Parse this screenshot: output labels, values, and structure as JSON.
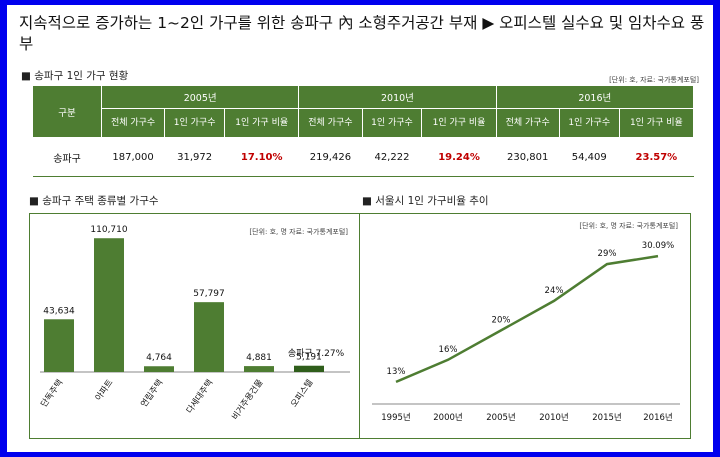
{
  "headline": "지속적으로 증가하는 1~2인 가구를 위한 송파구 內 소형주거공간 부재 ▶ 오피스텔 실수요 및 임차수요 풍부",
  "table_section": {
    "title": "■ 송파구 1인 가구 현황",
    "source": "[단위: 호, 자료: 국가통계포털]",
    "row_header": "구분",
    "years": [
      "2005년",
      "2010년",
      "2016년"
    ],
    "sub_headers": [
      "전체 가구수",
      "1인 가구수",
      "1인 가구 비율"
    ],
    "rows": [
      {
        "label": "송파구",
        "cells": [
          "187,000",
          "31,972",
          "17.10%",
          "219,426",
          "42,222",
          "19.24%",
          "230,801",
          "54,409",
          "23.57%"
        ]
      }
    ]
  },
  "colors": {
    "accent": "#4e7d32",
    "highlight": "#c00000",
    "frame": "#0000ee"
  },
  "chart_data": [
    {
      "type": "bar",
      "title": "■ 송파구 주택 종류별 가구수",
      "source": "[단위: 호, 명 자료: 국가통계포털]",
      "categories": [
        "단독주택",
        "아파트",
        "연립주택",
        "다세대주택",
        "비거주용건물",
        "오피스텔"
      ],
      "values": [
        43634,
        110710,
        4764,
        57797,
        4881,
        5191
      ],
      "labels": [
        "43,634",
        "110,710",
        "4,764",
        "57,797",
        "4,881",
        "5,191"
      ],
      "annotation": "송파구 7.27%",
      "ylim": [
        0,
        120000
      ]
    },
    {
      "type": "line",
      "title": "■ 서울시 1인 가구비율 추이",
      "source": "[단위: 호, 명 자료: 국가통계포털]",
      "x": [
        "1995년",
        "2000년",
        "2005년",
        "2010년",
        "2015년",
        "2016년"
      ],
      "values": [
        13,
        16,
        20,
        24,
        29,
        30.09
      ],
      "labels": [
        "13%",
        "16%",
        "20%",
        "24%",
        "29%",
        "30.09%"
      ],
      "ylim": [
        10,
        32
      ]
    }
  ]
}
